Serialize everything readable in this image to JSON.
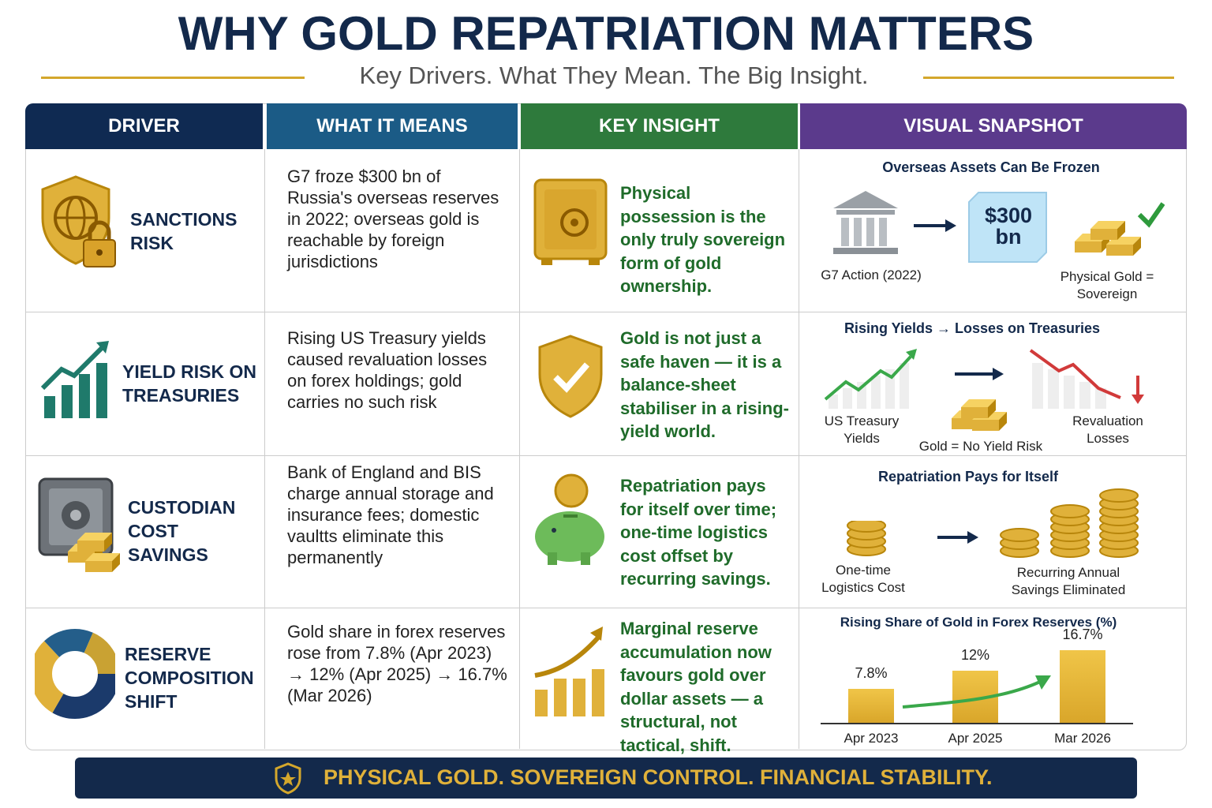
{
  "header": {
    "title": "WHY GOLD REPATRIATION MATTERS",
    "subtitle": "Key Drivers. What They Mean. The Big Insight."
  },
  "table": {
    "columns": [
      "DRIVER",
      "WHAT IT MEANS",
      "KEY INSIGHT",
      "VISUAL SNAPSHOT"
    ],
    "rows": [
      {
        "driver": "SANCTIONS RISK",
        "meaning": "G7 froze $300 bn of Russia's overseas reserves in 2022; overseas gold is reachable by foreign jurisdictions",
        "insight": "Physical possession is the only truly sovereign form of gold ownership.",
        "snapshot": {
          "title": "Overseas Assets Can Be Frozen",
          "labels": [
            "$300 bn",
            "G7 Action (2022)",
            "Physical Gold = Sovereign"
          ]
        }
      },
      {
        "driver": "YIELD RISK ON TREASURIES",
        "meaning": "Rising US Treasury yields caused revaluation losses on forex holdings; gold carries no such risk",
        "insight": "Gold is not just a safe haven — it is a balance-sheet stabiliser in a rising-yield world.",
        "snapshot": {
          "title": "Rising Yields → Losses on Treasuries",
          "labels": [
            "US Treasury Yields",
            "Gold = No Yield Risk",
            "Revaluation Losses"
          ]
        }
      },
      {
        "driver": "CUSTODIAN COST SAVINGS",
        "meaning": "Bank of England and BIS charge annual storage and insurance fees; domestic vaultts eliminate this permanently",
        "insight": "Repatriation pays for itself over time; one-time logistics cost offset by recurring savings.",
        "snapshot": {
          "title": "Repatriation Pays for Itself",
          "labels": [
            "One-time Logistics Cost",
            "Recurring Annual Savings Eliminated"
          ]
        }
      },
      {
        "driver": "RESERVE COMPOSITION SHIFT",
        "meaning": "Gold share in forex reserves rose from 7.8% (Apr 2023) → 12% (Apr 2025) → 16.7% (Mar 2026)",
        "insight": "Marginal reserve accumulation now favours gold over dollar assets — a structural, not tactical, shift."
      }
    ]
  },
  "gold_share_chart": {
    "title": "Rising Share of Gold in Forex Reserves (%)",
    "categories": [
      "Apr 2023",
      "Apr 2025",
      "Mar 2026"
    ],
    "values": [
      7.8,
      12,
      16.7
    ],
    "value_labels": [
      "7.8%",
      "12%",
      "16.7%"
    ]
  },
  "footer": "PHYSICAL GOLD. SOVEREIGN CONTROL. FINANCIAL STABILITY."
}
